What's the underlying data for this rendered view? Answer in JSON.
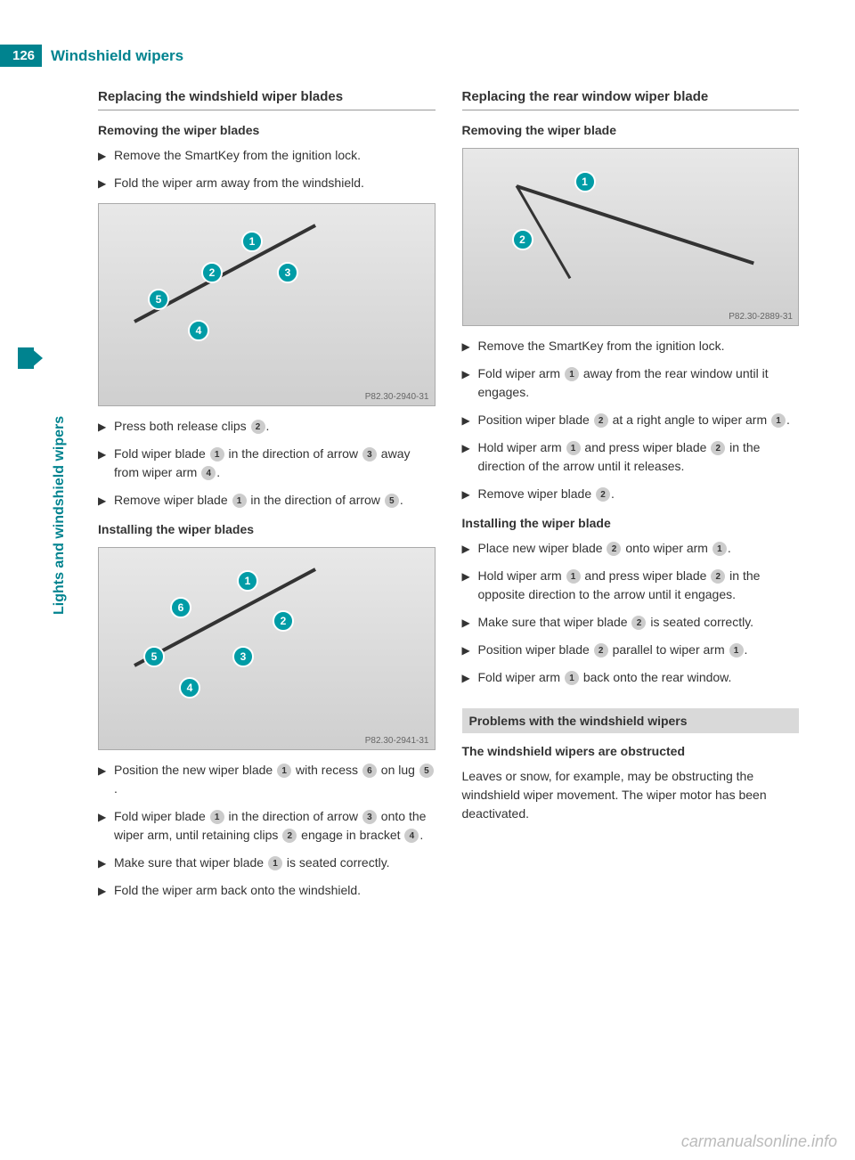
{
  "page_number": "126",
  "header_title": "Windshield wipers",
  "side_label": "Lights and windshield wipers",
  "colors": {
    "accent": "#00838f",
    "callout": "#009ca6",
    "gray_bg": "#d9d9d9",
    "text": "#333333"
  },
  "left_column": {
    "section": "Replacing the windshield wiper blades",
    "removing": {
      "title": "Removing the wiper blades",
      "steps": [
        "Remove the SmartKey from the ignition lock.",
        "Fold the wiper arm away from the windshield."
      ],
      "figure_caption": "P82.30-2940-31",
      "callouts": [
        "1",
        "2",
        "3",
        "4",
        "5"
      ],
      "steps_after": [
        {
          "pre": "Press both release clips ",
          "refs": [
            "2"
          ],
          "post": "."
        },
        {
          "pre": "Fold wiper blade ",
          "refs": [
            "1"
          ],
          "mid": " in the direction of arrow ",
          "refs2": [
            "3"
          ],
          "mid2": " away from wiper arm ",
          "refs3": [
            "4"
          ],
          "post": "."
        },
        {
          "pre": "Remove wiper blade ",
          "refs": [
            "1"
          ],
          "mid": " in the direction of arrow ",
          "refs2": [
            "5"
          ],
          "post": "."
        }
      ]
    },
    "installing": {
      "title": "Installing the wiper blades",
      "figure_caption": "P82.30-2941-31",
      "callouts": [
        "1",
        "2",
        "3",
        "4",
        "5",
        "6"
      ],
      "steps": [
        {
          "pre": "Position the new wiper blade ",
          "refs": [
            "1"
          ],
          "mid": " with recess ",
          "refs2": [
            "6"
          ],
          "mid2": " on lug ",
          "refs3": [
            "5"
          ],
          "post": "."
        },
        {
          "pre": "Fold wiper blade ",
          "refs": [
            "1"
          ],
          "mid": " in the direction of arrow ",
          "refs2": [
            "3"
          ],
          "mid2": " onto the wiper arm, until retaining clips ",
          "refs3": [
            "2"
          ],
          "mid3": " engage in bracket ",
          "refs4": [
            "4"
          ],
          "post": "."
        },
        {
          "pre": "Make sure that wiper blade ",
          "refs": [
            "1"
          ],
          "post": " is seated correctly."
        },
        {
          "pre": "Fold the wiper arm back onto the windshield.",
          "refs": [],
          "post": ""
        }
      ]
    }
  },
  "right_column": {
    "section": "Replacing the rear window wiper blade",
    "removing": {
      "title": "Removing the wiper blade",
      "figure_caption": "P82.30-2889-31",
      "callouts": [
        "1",
        "2"
      ],
      "steps": [
        {
          "pre": "Remove the SmartKey from the ignition lock.",
          "refs": [],
          "post": ""
        },
        {
          "pre": "Fold wiper arm ",
          "refs": [
            "1"
          ],
          "post": " away from the rear window until it engages."
        },
        {
          "pre": "Position wiper blade ",
          "refs": [
            "2"
          ],
          "mid": " at a right angle to wiper arm ",
          "refs2": [
            "1"
          ],
          "post": "."
        },
        {
          "pre": "Hold wiper arm ",
          "refs": [
            "1"
          ],
          "mid": " and press wiper blade ",
          "refs2": [
            "2"
          ],
          "post": " in the direction of the arrow until it releases."
        },
        {
          "pre": "Remove wiper blade ",
          "refs": [
            "2"
          ],
          "post": "."
        }
      ]
    },
    "installing": {
      "title": "Installing the wiper blade",
      "steps": [
        {
          "pre": "Place new wiper blade ",
          "refs": [
            "2"
          ],
          "mid": " onto wiper arm ",
          "refs2": [
            "1"
          ],
          "post": "."
        },
        {
          "pre": "Hold wiper arm ",
          "refs": [
            "1"
          ],
          "mid": " and press wiper blade ",
          "refs2": [
            "2"
          ],
          "post": " in the opposite direction to the arrow until it engages."
        },
        {
          "pre": "Make sure that wiper blade ",
          "refs": [
            "2"
          ],
          "post": " is seated correctly."
        },
        {
          "pre": "Position wiper blade ",
          "refs": [
            "2"
          ],
          "mid": " parallel to wiper arm ",
          "refs2": [
            "1"
          ],
          "post": "."
        },
        {
          "pre": "Fold wiper arm ",
          "refs": [
            "1"
          ],
          "post": " back onto the rear window."
        }
      ]
    },
    "problems": {
      "title": "Problems with the windshield wipers",
      "sub": "The windshield wipers are obstructed",
      "text": "Leaves or snow, for example, may be obstructing the windshield wiper movement. The wiper motor has been deactivated."
    }
  },
  "footer": "carmanualsonline.info"
}
